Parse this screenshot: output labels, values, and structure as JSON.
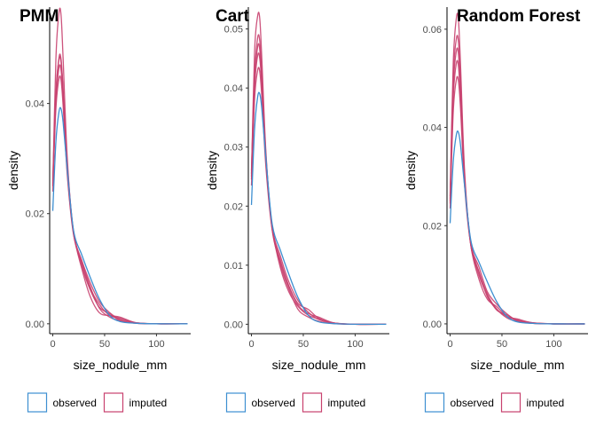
{
  "colors": {
    "observed": "#3d8fd1",
    "imputed": "#c8416f"
  },
  "chart_data": [
    {
      "type": "line",
      "title": "PMM",
      "xlabel": "size_nodule_mm",
      "ylabel": "density",
      "xlim": [
        -3,
        133
      ],
      "ylim": [
        -0.0018,
        0.0575
      ],
      "xticks": [
        0,
        50,
        100
      ],
      "yticks": [
        0.0,
        0.02,
        0.04
      ],
      "ytick_labels": [
        "0.00",
        "0.02",
        "0.04"
      ],
      "legend": {
        "position": "bottom",
        "entries": [
          "observed",
          "imputed"
        ]
      },
      "series": [
        {
          "name": "observed",
          "x": [
            0,
            3,
            6,
            8,
            10,
            14,
            20,
            28,
            36,
            45,
            55,
            65,
            80,
            100,
            130
          ],
          "y": [
            0.0205,
            0.033,
            0.0385,
            0.039,
            0.0365,
            0.028,
            0.017,
            0.0125,
            0.0085,
            0.0045,
            0.0015,
            0.0004,
            0.0001,
            0.0,
            0.0
          ]
        },
        {
          "name": "imputed",
          "x": [
            0,
            3,
            6,
            8,
            10,
            14,
            20,
            28,
            36,
            45,
            55,
            65,
            80,
            100,
            130
          ],
          "y": [
            0.025,
            0.048,
            0.0565,
            0.056,
            0.048,
            0.03,
            0.0165,
            0.011,
            0.0065,
            0.0035,
            0.0015,
            0.001,
            0.0002,
            0.0,
            0.0
          ]
        },
        {
          "name": "imputed",
          "x": [
            0,
            3,
            6,
            8,
            10,
            14,
            20,
            28,
            36,
            45,
            55,
            65,
            80,
            100,
            130
          ],
          "y": [
            0.026,
            0.042,
            0.048,
            0.0475,
            0.042,
            0.028,
            0.0165,
            0.0115,
            0.0075,
            0.004,
            0.002,
            0.0008,
            0.0002,
            0.0,
            0.0
          ]
        },
        {
          "name": "imputed",
          "x": [
            0,
            3,
            6,
            8,
            10,
            14,
            20,
            28,
            36,
            45,
            55,
            65,
            80,
            100,
            130
          ],
          "y": [
            0.025,
            0.04,
            0.0465,
            0.046,
            0.041,
            0.0275,
            0.0165,
            0.01,
            0.005,
            0.002,
            0.0015,
            0.0012,
            0.0002,
            0.0,
            0.0
          ]
        },
        {
          "name": "imputed",
          "x": [
            0,
            3,
            6,
            8,
            10,
            14,
            20,
            28,
            36,
            45,
            55,
            65,
            80,
            100,
            130
          ],
          "y": [
            0.024,
            0.041,
            0.0483,
            0.048,
            0.0425,
            0.029,
            0.0168,
            0.0105,
            0.0062,
            0.003,
            0.0018,
            0.0006,
            0.0001,
            0.0,
            0.0
          ]
        },
        {
          "name": "imputed",
          "x": [
            0,
            3,
            6,
            8,
            10,
            14,
            20,
            28,
            36,
            45,
            55,
            65,
            80,
            100,
            130
          ],
          "y": [
            0.0255,
            0.039,
            0.0445,
            0.0442,
            0.0395,
            0.027,
            0.0162,
            0.0112,
            0.0068,
            0.0028,
            0.0012,
            0.0005,
            0.0001,
            0.0,
            0.0
          ]
        }
      ]
    },
    {
      "type": "line",
      "title": "Cart",
      "xlabel": "size_nodule_mm",
      "ylabel": "density",
      "xlim": [
        -3,
        133
      ],
      "ylim": [
        -0.0016,
        0.0537
      ],
      "xticks": [
        0,
        50,
        100
      ],
      "yticks": [
        0.0,
        0.01,
        0.02,
        0.03,
        0.04,
        0.05
      ],
      "ytick_labels": [
        "0.00",
        "0.01",
        "0.02",
        "0.03",
        "0.04",
        "0.05"
      ],
      "legend": {
        "position": "bottom",
        "entries": [
          "observed",
          "imputed"
        ]
      },
      "series": [
        {
          "name": "observed",
          "x": [
            0,
            3,
            6,
            8,
            10,
            14,
            20,
            28,
            36,
            45,
            55,
            65,
            80,
            100,
            130
          ],
          "y": [
            0.0202,
            0.033,
            0.0385,
            0.039,
            0.0365,
            0.028,
            0.017,
            0.0125,
            0.0085,
            0.0045,
            0.0015,
            0.0004,
            0.0001,
            0.0,
            0.0
          ]
        },
        {
          "name": "imputed",
          "x": [
            0,
            3,
            6,
            8,
            10,
            14,
            20,
            28,
            36,
            45,
            55,
            65,
            80,
            100,
            130
          ],
          "y": [
            0.025,
            0.046,
            0.0522,
            0.0518,
            0.045,
            0.029,
            0.016,
            0.0105,
            0.0065,
            0.0035,
            0.0025,
            0.001,
            0.0002,
            0.0,
            0.0
          ]
        },
        {
          "name": "imputed",
          "x": [
            0,
            3,
            6,
            8,
            10,
            14,
            20,
            28,
            36,
            45,
            55,
            65,
            80,
            100,
            130
          ],
          "y": [
            0.026,
            0.042,
            0.0485,
            0.048,
            0.0425,
            0.0285,
            0.0165,
            0.0115,
            0.0072,
            0.004,
            0.002,
            0.0008,
            0.0002,
            0.0,
            0.0
          ]
        },
        {
          "name": "imputed",
          "x": [
            0,
            3,
            6,
            8,
            10,
            14,
            20,
            28,
            36,
            45,
            55,
            65,
            80,
            100,
            130
          ],
          "y": [
            0.0245,
            0.04,
            0.0455,
            0.045,
            0.0405,
            0.0275,
            0.0163,
            0.0095,
            0.0055,
            0.003,
            0.0015,
            0.0009,
            0.0002,
            0.0,
            0.0
          ]
        },
        {
          "name": "imputed",
          "x": [
            0,
            3,
            6,
            8,
            10,
            14,
            20,
            28,
            36,
            45,
            55,
            65,
            80,
            100,
            130
          ],
          "y": [
            0.0235,
            0.038,
            0.043,
            0.0428,
            0.0385,
            0.0265,
            0.016,
            0.0108,
            0.0065,
            0.0032,
            0.0018,
            0.0012,
            0.0002,
            0.0,
            0.0
          ]
        },
        {
          "name": "imputed",
          "x": [
            0,
            3,
            6,
            8,
            10,
            14,
            20,
            28,
            36,
            45,
            55,
            65,
            80,
            100,
            130
          ],
          "y": [
            0.0255,
            0.041,
            0.047,
            0.0465,
            0.041,
            0.028,
            0.0165,
            0.01,
            0.006,
            0.0025,
            0.0012,
            0.0005,
            0.0001,
            0.0,
            0.0
          ]
        }
      ]
    },
    {
      "type": "line",
      "title": "Random Forest",
      "xlabel": "size_nodule_mm",
      "ylabel": "density",
      "xlim": [
        -3,
        133
      ],
      "ylim": [
        -0.002,
        0.0645
      ],
      "xticks": [
        0,
        50,
        100
      ],
      "yticks": [
        0.0,
        0.02,
        0.04,
        0.06
      ],
      "ytick_labels": [
        "0.00",
        "0.02",
        "0.04",
        "0.06"
      ],
      "legend": {
        "position": "bottom",
        "entries": [
          "observed",
          "imputed"
        ]
      },
      "series": [
        {
          "name": "observed",
          "x": [
            0,
            3,
            6,
            8,
            10,
            14,
            20,
            28,
            36,
            45,
            55,
            65,
            80,
            100,
            130
          ],
          "y": [
            0.0205,
            0.033,
            0.0385,
            0.039,
            0.0365,
            0.028,
            0.017,
            0.0125,
            0.0085,
            0.0045,
            0.0015,
            0.0004,
            0.0001,
            0.0,
            0.0
          ]
        },
        {
          "name": "imputed",
          "x": [
            0,
            3,
            6,
            8,
            10,
            14,
            20,
            28,
            36,
            45,
            55,
            65,
            80,
            100,
            130
          ],
          "y": [
            0.026,
            0.053,
            0.0622,
            0.062,
            0.053,
            0.031,
            0.016,
            0.0105,
            0.0055,
            0.003,
            0.0015,
            0.0008,
            0.0002,
            0.0,
            0.0
          ]
        },
        {
          "name": "imputed",
          "x": [
            0,
            3,
            6,
            8,
            10,
            14,
            20,
            28,
            36,
            45,
            55,
            65,
            80,
            100,
            130
          ],
          "y": [
            0.025,
            0.05,
            0.058,
            0.0575,
            0.05,
            0.03,
            0.0165,
            0.0115,
            0.0065,
            0.004,
            0.002,
            0.0007,
            0.0002,
            0.0,
            0.0
          ]
        },
        {
          "name": "imputed",
          "x": [
            0,
            3,
            6,
            8,
            10,
            14,
            20,
            28,
            36,
            45,
            55,
            65,
            80,
            100,
            130
          ],
          "y": [
            0.0245,
            0.048,
            0.0555,
            0.055,
            0.048,
            0.0295,
            0.016,
            0.009,
            0.005,
            0.0035,
            0.0015,
            0.001,
            0.0002,
            0.0,
            0.0
          ]
        },
        {
          "name": "imputed",
          "x": [
            0,
            3,
            6,
            8,
            10,
            14,
            20,
            28,
            36,
            45,
            55,
            65,
            80,
            100,
            130
          ],
          "y": [
            0.0255,
            0.046,
            0.053,
            0.0525,
            0.046,
            0.029,
            0.0165,
            0.0105,
            0.006,
            0.003,
            0.0012,
            0.0005,
            0.0001,
            0.0,
            0.0
          ]
        },
        {
          "name": "imputed",
          "x": [
            0,
            3,
            6,
            8,
            10,
            14,
            20,
            28,
            36,
            45,
            55,
            65,
            80,
            100,
            130
          ],
          "y": [
            0.0235,
            0.043,
            0.0497,
            0.0495,
            0.044,
            0.028,
            0.016,
            0.0098,
            0.0058,
            0.0028,
            0.0018,
            0.0006,
            0.0001,
            0.0,
            0.0
          ]
        }
      ]
    }
  ]
}
